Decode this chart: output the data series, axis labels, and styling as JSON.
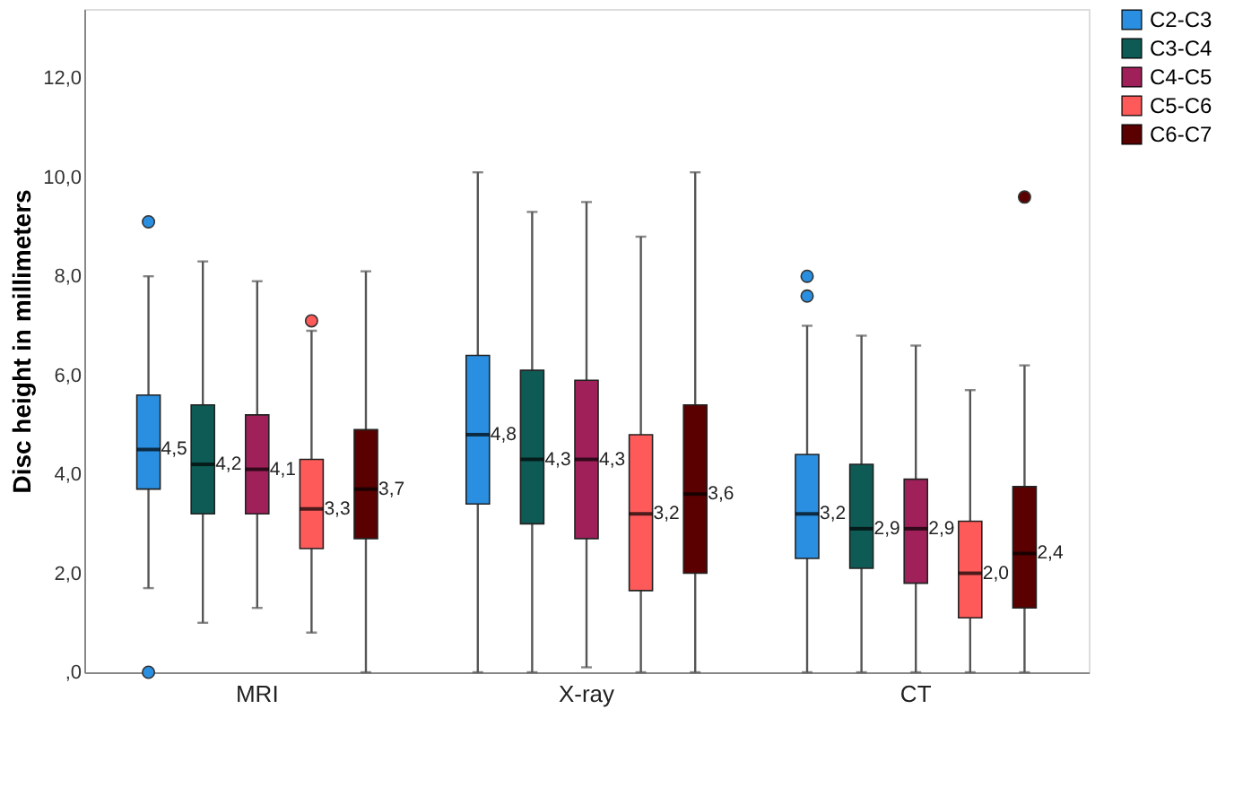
{
  "chart_data": {
    "type": "box",
    "ylabel": "Disc height in millimeters",
    "categories": [
      "MRI",
      "X-ray",
      "CT"
    ],
    "ylim": [
      0,
      13.4
    ],
    "yticks": [
      {
        "value": 0,
        "label": ",0"
      },
      {
        "value": 2,
        "label": "2,0"
      },
      {
        "value": 4,
        "label": "4,0"
      },
      {
        "value": 6,
        "label": "6,0"
      },
      {
        "value": 8,
        "label": "8,0"
      },
      {
        "value": 10,
        "label": "10,0"
      },
      {
        "value": 12,
        "label": "12,0"
      }
    ],
    "grid": false,
    "legend": "top right",
    "series": [
      {
        "name": "C2-C3",
        "color": "#2a8fe0",
        "value_labels": [
          "4,5",
          "4,8",
          "3,2"
        ],
        "boxes": [
          {
            "low": 1.7,
            "q1": 3.7,
            "median": 4.5,
            "q3": 5.6,
            "high": 8.0,
            "outliers": [
              9.1,
              0
            ]
          },
          {
            "low": 0,
            "q1": 3.4,
            "median": 4.8,
            "q3": 6.4,
            "high": 10.1
          },
          {
            "low": 0,
            "q1": 2.3,
            "median": 3.2,
            "q3": 4.4,
            "high": 7.0,
            "outliers": [
              8.0,
              7.6
            ]
          }
        ]
      },
      {
        "name": "C3-C4",
        "color": "#0e5a55",
        "value_labels": [
          "4,2",
          "4,3",
          "2,9"
        ],
        "boxes": [
          {
            "low": 1.0,
            "q1": 3.2,
            "median": 4.2,
            "q3": 5.4,
            "high": 8.3
          },
          {
            "low": 0,
            "q1": 3.0,
            "median": 4.3,
            "q3": 6.1,
            "high": 9.3
          },
          {
            "low": 0,
            "q1": 2.1,
            "median": 2.9,
            "q3": 4.2,
            "high": 6.8
          }
        ]
      },
      {
        "name": "C4-C5",
        "color": "#a0205a",
        "value_labels": [
          "4,1",
          "4,3",
          "2,9"
        ],
        "boxes": [
          {
            "low": 1.3,
            "q1": 3.2,
            "median": 4.1,
            "q3": 5.2,
            "high": 7.9
          },
          {
            "low": 0.1,
            "q1": 2.7,
            "median": 4.3,
            "q3": 5.9,
            "high": 9.5
          },
          {
            "low": 0,
            "q1": 1.8,
            "median": 2.9,
            "q3": 3.9,
            "high": 6.6
          }
        ]
      },
      {
        "name": "C5-C6",
        "color": "#ff5a5a",
        "value_labels": [
          "3,3",
          "3,2",
          "2,0"
        ],
        "boxes": [
          {
            "low": 0.8,
            "q1": 2.5,
            "median": 3.3,
            "q3": 4.3,
            "high": 6.9,
            "outliers": [
              7.1
            ]
          },
          {
            "low": 0,
            "q1": 1.65,
            "median": 3.2,
            "q3": 4.8,
            "high": 8.8
          },
          {
            "low": 0,
            "q1": 1.1,
            "median": 2.0,
            "q3": 3.05,
            "high": 5.7
          }
        ]
      },
      {
        "name": "C6-C7",
        "color": "#5a0000",
        "value_labels": [
          "3,7",
          "3,6",
          "2,4"
        ],
        "boxes": [
          {
            "low": 0,
            "q1": 2.7,
            "median": 3.7,
            "q3": 4.9,
            "high": 8.1
          },
          {
            "low": 0,
            "q1": 2.0,
            "median": 3.6,
            "q3": 5.4,
            "high": 10.1
          },
          {
            "low": 0,
            "q1": 1.3,
            "median": 2.4,
            "q3": 3.75,
            "high": 6.2,
            "outliers": [
              9.6
            ]
          }
        ]
      }
    ]
  }
}
